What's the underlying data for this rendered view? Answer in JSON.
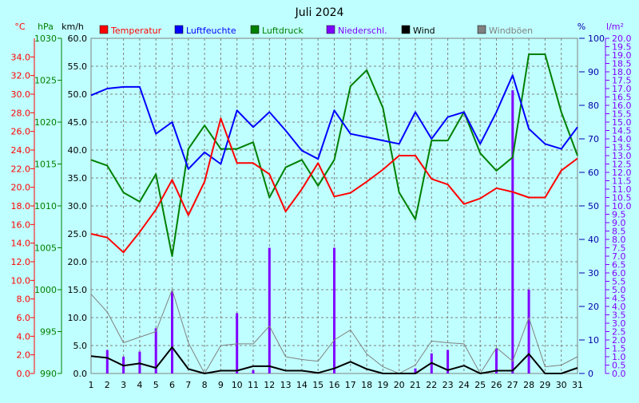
{
  "title": "Juli 2024",
  "units": {
    "temp": "°C",
    "pressure": "hPa",
    "wind": "km/h",
    "humidity": "%",
    "rain": "l/m²"
  },
  "legend": [
    {
      "key": "temp",
      "label": "Temperatur",
      "color": "#ff0000"
    },
    {
      "key": "humidity",
      "label": "Luftfeuchte",
      "color": "#0000ff"
    },
    {
      "key": "pressure",
      "label": "Luftdruck",
      "color": "#008000"
    },
    {
      "key": "rain",
      "label": "Niederschl.",
      "color": "#8000ff"
    },
    {
      "key": "wind",
      "label": "Wind",
      "color": "#000000"
    },
    {
      "key": "gust",
      "label": "Windböen",
      "color": "#808080"
    }
  ],
  "colors": {
    "background": "#c0ffff",
    "grid": "#808080",
    "axis_temp": "#ff0000",
    "axis_pressure": "#008000",
    "axis_wind": "#000000",
    "axis_humidity": "#0000aa",
    "axis_rain": "#8000ff"
  },
  "chart_data": {
    "type": "line",
    "title": "Juli 2024",
    "legend_position": "top",
    "grid": true,
    "x": [
      1,
      2,
      3,
      4,
      5,
      6,
      7,
      8,
      9,
      10,
      11,
      12,
      13,
      14,
      15,
      16,
      17,
      18,
      19,
      20,
      21,
      22,
      23,
      24,
      25,
      26,
      27,
      28,
      29,
      30,
      31
    ],
    "axes": {
      "temp": {
        "label": "°C",
        "range": [
          0,
          36
        ],
        "ticks": [
          "0.0",
          "2.0",
          "4.0",
          "6.0",
          "8.0",
          "10.0",
          "12.0",
          "14.0",
          "16.0",
          "18.0",
          "20.0",
          "22.0",
          "24.0",
          "26.0",
          "28.0",
          "30.0",
          "32.0",
          "34.0"
        ]
      },
      "pressure": {
        "label": "hPa",
        "range": [
          990,
          1030
        ],
        "ticks": [
          "990",
          "995",
          "1000",
          "1005",
          "1010",
          "1015",
          "1020",
          "1025",
          "1030"
        ]
      },
      "wind": {
        "label": "km/h",
        "range": [
          0,
          60
        ],
        "ticks": [
          "0.0",
          "5.0",
          "10.0",
          "15.0",
          "20.0",
          "25.0",
          "30.0",
          "35.0",
          "40.0",
          "45.0",
          "50.0",
          "55.0",
          "60.0"
        ]
      },
      "humidity": {
        "label": "%",
        "range": [
          0,
          100
        ],
        "ticks": [
          "0",
          "10",
          "20",
          "30",
          "40",
          "50",
          "60",
          "70",
          "80",
          "90",
          "100"
        ]
      },
      "rain": {
        "label": "l/m²",
        "range": [
          0,
          20
        ],
        "ticks": [
          "0.0",
          "0.5",
          "1.0",
          "1.5",
          "2.0",
          "2.5",
          "3.0",
          "3.5",
          "4.0",
          "4.5",
          "5.0",
          "5.5",
          "6.0",
          "6.5",
          "7.0",
          "7.5",
          "8.0",
          "8.5",
          "9.0",
          "9.5",
          "10.0",
          "10.5",
          "11.0",
          "11.5",
          "12.0",
          "12.5",
          "13.0",
          "13.5",
          "14.0",
          "14.5",
          "15.0",
          "15.5",
          "16.0",
          "16.5",
          "17.0",
          "17.5",
          "18.0",
          "18.5",
          "19.0",
          "19.5",
          "20.0"
        ]
      }
    },
    "series": [
      {
        "name": "Temperatur",
        "axis": "temp",
        "kind": "line",
        "color": "#ff0000",
        "values": [
          15.0,
          14.6,
          13.0,
          15.2,
          17.6,
          20.8,
          17.0,
          20.6,
          27.4,
          22.6,
          22.6,
          21.4,
          17.4,
          19.8,
          22.6,
          19.0,
          19.4,
          20.6,
          21.9,
          23.4,
          23.4,
          20.9,
          20.3,
          18.2,
          18.8,
          19.9,
          19.5,
          18.9,
          18.9,
          21.8,
          23.1
        ]
      },
      {
        "name": "Luftfeuchte",
        "axis": "humidity",
        "kind": "line",
        "color": "#0000ff",
        "values": [
          83,
          85,
          85.5,
          85.5,
          71.5,
          75,
          61,
          66,
          62.5,
          78.5,
          73.5,
          78,
          72.5,
          66.5,
          64,
          78.5,
          71.5,
          70.5,
          69.5,
          68.5,
          78,
          70,
          76.5,
          78,
          68.5,
          78,
          89,
          73,
          68.5,
          67,
          73.5
        ]
      },
      {
        "name": "Luftdruck",
        "axis": "pressure",
        "kind": "line",
        "color": "#008000",
        "values": [
          1015.5,
          1014.8,
          1011.6,
          1010.5,
          1013.8,
          1004.0,
          1016.8,
          1019.6,
          1016.8,
          1016.8,
          1017.6,
          1011.0,
          1014.6,
          1015.5,
          1012.4,
          1015.5,
          1024.3,
          1026.2,
          1021.7,
          1011.6,
          1008.4,
          1017.8,
          1017.8,
          1021.2,
          1016.3,
          1014.2,
          1015.8,
          1028.1,
          1028.1,
          1021.2,
          1016.0
        ]
      },
      {
        "name": "Niederschl.",
        "axis": "rain",
        "kind": "bar",
        "color": "#8000ff",
        "values": [
          0,
          1.4,
          1.0,
          1.3,
          2.7,
          4.9,
          0,
          0,
          0,
          3.6,
          0.2,
          7.5,
          0,
          0,
          0,
          7.5,
          0,
          0,
          0,
          0,
          0.3,
          1.2,
          1.4,
          0,
          0,
          1.5,
          16.9,
          5.0,
          0,
          0,
          0
        ]
      },
      {
        "name": "Wind",
        "axis": "wind",
        "kind": "line",
        "color": "#000000",
        "values": [
          3.1,
          2.8,
          1.4,
          1.8,
          1.0,
          4.7,
          0.8,
          0.0,
          0.5,
          0.5,
          1.3,
          1.3,
          0.5,
          0.5,
          0.1,
          0.9,
          2.1,
          0.8,
          0.0,
          0.0,
          0.0,
          1.9,
          0.6,
          1.4,
          0.0,
          0.5,
          0.5,
          3.5,
          0.0,
          0.0,
          1.0
        ]
      },
      {
        "name": "Windböen",
        "axis": "wind",
        "kind": "line",
        "color": "#808080",
        "values": [
          14.2,
          11.0,
          5.5,
          6.5,
          7.5,
          15.0,
          5.5,
          0.0,
          5.0,
          5.3,
          5.3,
          8.5,
          3.0,
          2.5,
          2.2,
          6.0,
          7.8,
          3.5,
          1.2,
          0.0,
          1.5,
          5.8,
          5.5,
          5.3,
          0.0,
          4.6,
          2.2,
          10.0,
          1.2,
          1.5,
          3.0
        ]
      }
    ]
  }
}
